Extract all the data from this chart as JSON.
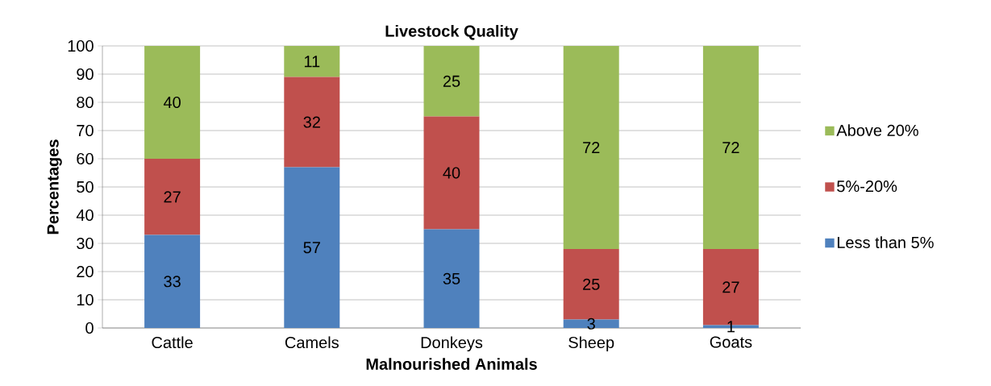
{
  "chart_data": {
    "type": "bar",
    "stacked": true,
    "title": "Livestock Quality",
    "xlabel": "Malnourished Animals",
    "ylabel": "Percentages",
    "categories": [
      "Cattle",
      "Camels",
      "Donkeys",
      "Sheep",
      "Goats"
    ],
    "series": [
      {
        "name": "Less than 5%",
        "color": "#4f81bd",
        "values": [
          33,
          57,
          35,
          3,
          1
        ]
      },
      {
        "name": "5%-20%",
        "color": "#c0504d",
        "values": [
          27,
          32,
          40,
          25,
          27
        ]
      },
      {
        "name": "Above 20%",
        "color": "#9bbb59",
        "values": [
          40,
          11,
          25,
          72,
          72
        ]
      }
    ],
    "ylim": [
      0,
      100
    ],
    "yticks": [
      0,
      10,
      20,
      30,
      40,
      50,
      60,
      70,
      80,
      90,
      100
    ],
    "grid": "y",
    "legend": "right",
    "data_labels": true
  }
}
